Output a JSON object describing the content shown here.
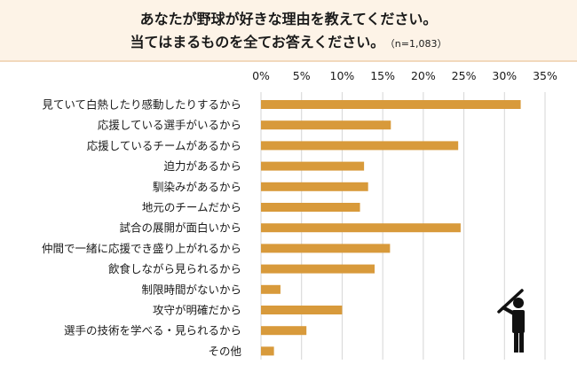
{
  "header": {
    "title_line1": "あなたが野球が好きな理由を教えてください。",
    "title_line2": "当てはまるものを全てお答えください。",
    "sample": "（n=1,083）"
  },
  "chart_data": {
    "type": "bar",
    "orientation": "horizontal",
    "title": "",
    "xlabel": "",
    "ylabel": "",
    "xlim": [
      0,
      35
    ],
    "ticks": [
      0,
      5,
      10,
      15,
      20,
      25,
      30,
      35
    ],
    "tick_labels": [
      "0%",
      "5%",
      "10%",
      "15%",
      "20%",
      "25%",
      "30%",
      "35%"
    ],
    "grid": true,
    "bar_color": "#d89a3b",
    "categories": [
      "見ていて白熱したり感動したりするから",
      "応援している選手がいるから",
      "応援しているチームがあるから",
      "迫力があるから",
      "馴染みがあるから",
      "地元のチームだから",
      "試合の展開が面白いから",
      "仲間で一緒に応援でき盛り上がれるから",
      "飲食しながら見られるから",
      "制限時間がないから",
      "攻守が明確だから",
      "選手の技術を学べる・見られるから",
      "その他"
    ],
    "values": [
      32.0,
      16.0,
      24.3,
      12.7,
      13.2,
      12.2,
      24.6,
      15.9,
      14.0,
      2.4,
      10.0,
      5.6,
      1.6
    ]
  },
  "decoration": {
    "icon": "baseball-batter-icon"
  }
}
